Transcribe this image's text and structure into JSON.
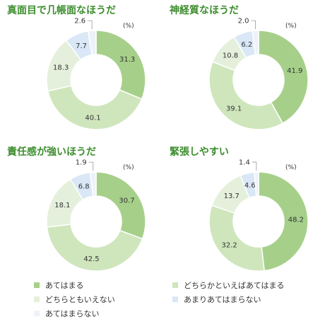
{
  "colors": {
    "s0": "#a6d08a",
    "s1": "#cfe6bd",
    "s2": "#e4f0db",
    "s3": "#d9e7f6",
    "s4": "#eef2f8"
  },
  "legend": [
    {
      "label": "あてはまる",
      "color": "#a6d08a"
    },
    {
      "label": "どちらかといえばあてはまる",
      "color": "#cfe6bd"
    },
    {
      "label": "どちらともいえない",
      "color": "#e4f0db"
    },
    {
      "label": "あまりあてはまらない",
      "color": "#d9e7f6"
    },
    {
      "label": "あてはまらない",
      "color": "#eef2f8"
    }
  ],
  "chart_data": [
    {
      "type": "pie",
      "title": "真面目で几帳面なほうだ",
      "unit": "(%)",
      "categories": [
        "あてはまる",
        "どちらかといえばあてはまる",
        "どちらともいえない",
        "あまりあてはまらない",
        "あてはまらない"
      ],
      "values": [
        31.3,
        40.1,
        18.3,
        7.7,
        2.6
      ],
      "labels": [
        "31.3",
        "40.1",
        "18.3",
        "7.7",
        "2.6"
      ]
    },
    {
      "type": "pie",
      "title": "神経質なほうだ",
      "unit": "(%)",
      "categories": [
        "あてはまる",
        "どちらかといえばあてはまる",
        "どちらともいえない",
        "あまりあてはまらない",
        "あてはまらない"
      ],
      "values": [
        41.9,
        39.1,
        10.8,
        6.2,
        2.0
      ],
      "labels": [
        "41.9",
        "39.1",
        "10.8",
        "6.2",
        "2.0"
      ]
    },
    {
      "type": "pie",
      "title": "責任感が強いほうだ",
      "unit": "(%)",
      "categories": [
        "あてはまる",
        "どちらかといえばあてはまる",
        "どちらともいえない",
        "あまりあてはまらない",
        "あてはまらない"
      ],
      "values": [
        30.7,
        42.5,
        18.1,
        6.8,
        1.9
      ],
      "labels": [
        "30.7",
        "42.5",
        "18.1",
        "6.8",
        "1.9"
      ]
    },
    {
      "type": "pie",
      "title": "緊張しやすい",
      "unit": "(%)",
      "categories": [
        "あてはまる",
        "どちらかといえばあてはまる",
        "どちらともいえない",
        "あまりあてはまらない",
        "あてはまらない"
      ],
      "values": [
        48.2,
        32.2,
        13.7,
        4.6,
        1.4
      ],
      "labels": [
        "48.2",
        "32.2",
        "13.7",
        "4.6",
        "1.4"
      ]
    }
  ]
}
